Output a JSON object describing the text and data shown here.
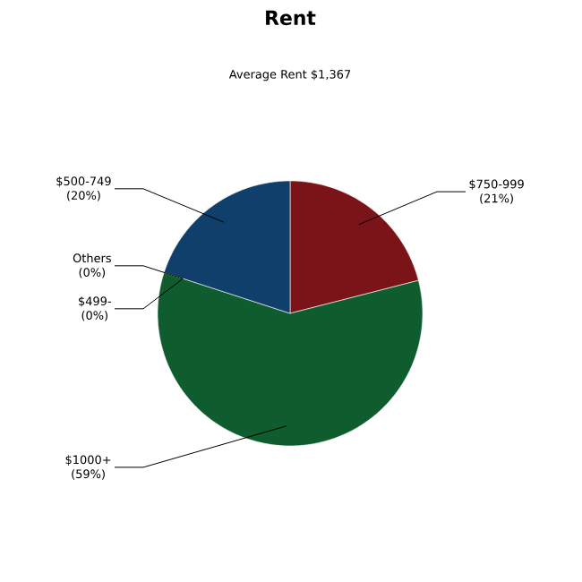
{
  "chart_data": {
    "type": "pie",
    "title": "Rent",
    "subtitle": "Average Rent  $1,367",
    "categories": [
      "$750-999",
      "$1000+",
      "Others",
      "$499-",
      "$500-749"
    ],
    "values": [
      21,
      59,
      0,
      0,
      20
    ],
    "value_labels": [
      "(21%)",
      "(59%)",
      "(0%)",
      "(0%)",
      "(20%)"
    ],
    "colors": [
      "#7a1418",
      "#0f5c2e",
      "#8a8a8a",
      "#6a6a6a",
      "#103f6b"
    ]
  }
}
